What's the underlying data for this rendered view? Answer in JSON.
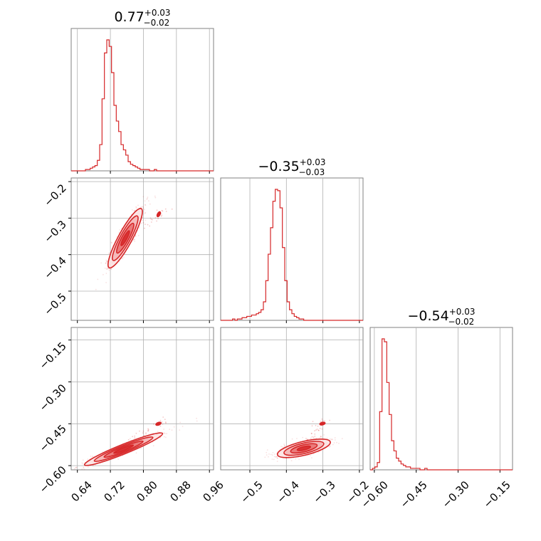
{
  "chart_data": {
    "type": "corner",
    "color": "#d62728",
    "fill_colors": [
      "#fbe3e3",
      "#f4b3b3",
      "#e77070",
      "#d62728"
    ],
    "grid": true,
    "grid_color": "#b0b0b0",
    "parameters": [
      {
        "index": 0,
        "median": "0.77",
        "plus": "+0.03",
        "minus": "−0.02",
        "range": [
          0.625,
          0.97
        ],
        "ticks": [
          0.64,
          0.72,
          0.8,
          0.88,
          0.96
        ],
        "tick_labels": [
          "0.64",
          "0.72",
          "0.80",
          "0.88",
          "0.96"
        ]
      },
      {
        "index": 1,
        "median": "−0.35",
        "plus": "+0.03",
        "minus": "−0.03",
        "range": [
          -0.58,
          -0.19
        ],
        "ticks": [
          -0.5,
          -0.4,
          -0.3,
          -0.2
        ],
        "tick_labels": [
          "−0.5",
          "−0.4",
          "−0.3",
          "−0.2"
        ],
        "y_ticks": [
          -0.2,
          -0.3,
          -0.4,
          -0.5
        ],
        "y_tick_labels": [
          "−0.2",
          "−0.3",
          "−0.4",
          "−0.5"
        ]
      },
      {
        "index": 2,
        "median": "−0.54",
        "plus": "+0.03",
        "minus": "−0.02",
        "range": [
          -0.615,
          -0.105
        ],
        "ticks": [
          -0.6,
          -0.45,
          -0.3,
          -0.15
        ],
        "tick_labels": [
          "−0.60",
          "−0.45",
          "−0.30",
          "−0.15"
        ],
        "y_ticks": [
          -0.15,
          -0.3,
          -0.45,
          -0.6
        ],
        "y_tick_labels": [
          "−0.15",
          "−0.30",
          "−0.45",
          "−0.60"
        ]
      }
    ],
    "histograms": [
      {
        "param": 0,
        "bin_start": 0.625,
        "bin_width": 0.00575,
        "counts": [
          0,
          0,
          0,
          0,
          0,
          0,
          1,
          1,
          2,
          3,
          4,
          8,
          20,
          55,
          90,
          100,
          95,
          75,
          50,
          38,
          30,
          20,
          16,
          12,
          7,
          5,
          4,
          3,
          2,
          1,
          1,
          1,
          1,
          0,
          0,
          1,
          0,
          0,
          0,
          0,
          0,
          0,
          0,
          0,
          0,
          0,
          0,
          0,
          0,
          0,
          0,
          0,
          0,
          0,
          0,
          0,
          0,
          0,
          0,
          0
        ]
      },
      {
        "param": 1,
        "bin_start": -0.58,
        "bin_width": 0.0065,
        "counts": [
          0,
          0,
          0,
          0,
          0,
          1,
          0,
          1,
          1,
          2,
          2,
          3,
          3,
          4,
          4,
          5,
          6,
          8,
          14,
          30,
          50,
          70,
          90,
          99,
          98,
          85,
          55,
          30,
          14,
          8,
          5,
          3,
          2,
          1,
          1,
          0,
          0,
          0,
          0,
          0,
          0,
          0,
          0,
          0,
          0,
          0,
          0,
          0,
          0,
          0,
          0,
          0,
          0,
          0,
          0,
          0,
          0,
          0,
          0,
          0
        ]
      },
      {
        "param": 2,
        "bin_start": -0.615,
        "bin_width": 0.0085,
        "counts": [
          0,
          1,
          2,
          5,
          40,
          90,
          88,
          60,
          38,
          20,
          13,
          8,
          6,
          4,
          3,
          2,
          2,
          1,
          1,
          1,
          1,
          0,
          0,
          1,
          0,
          0,
          0,
          0,
          0,
          0,
          0,
          0,
          0,
          0,
          0,
          0,
          0,
          0,
          0,
          0,
          0,
          0,
          0,
          0,
          0,
          0,
          0,
          0,
          0,
          0,
          0,
          0,
          0,
          0,
          0,
          0,
          0,
          0,
          0,
          0
        ]
      }
    ],
    "joint": [
      {
        "x": 0,
        "y": 1,
        "center": [
          0.756,
          -0.355
        ],
        "direction": [
          0.36,
          0.75
        ],
        "sigma": [
          0.045,
          0.0085
        ],
        "tail_end": [
          0.855,
          -0.275
        ]
      },
      {
        "x": 0,
        "y": 2,
        "center": [
          0.752,
          -0.541
        ],
        "direction": [
          0.86,
          0.51
        ],
        "sigma": [
          0.055,
          0.0075
        ],
        "tail_end": [
          0.855,
          -0.43
        ]
      },
      {
        "x": 1,
        "y": 2,
        "center": [
          -0.352,
          -0.538
        ],
        "direction": [
          0.95,
          0.3
        ],
        "sigma": [
          0.038,
          0.012
        ],
        "tail_end": [
          -0.29,
          -0.43
        ]
      }
    ]
  }
}
